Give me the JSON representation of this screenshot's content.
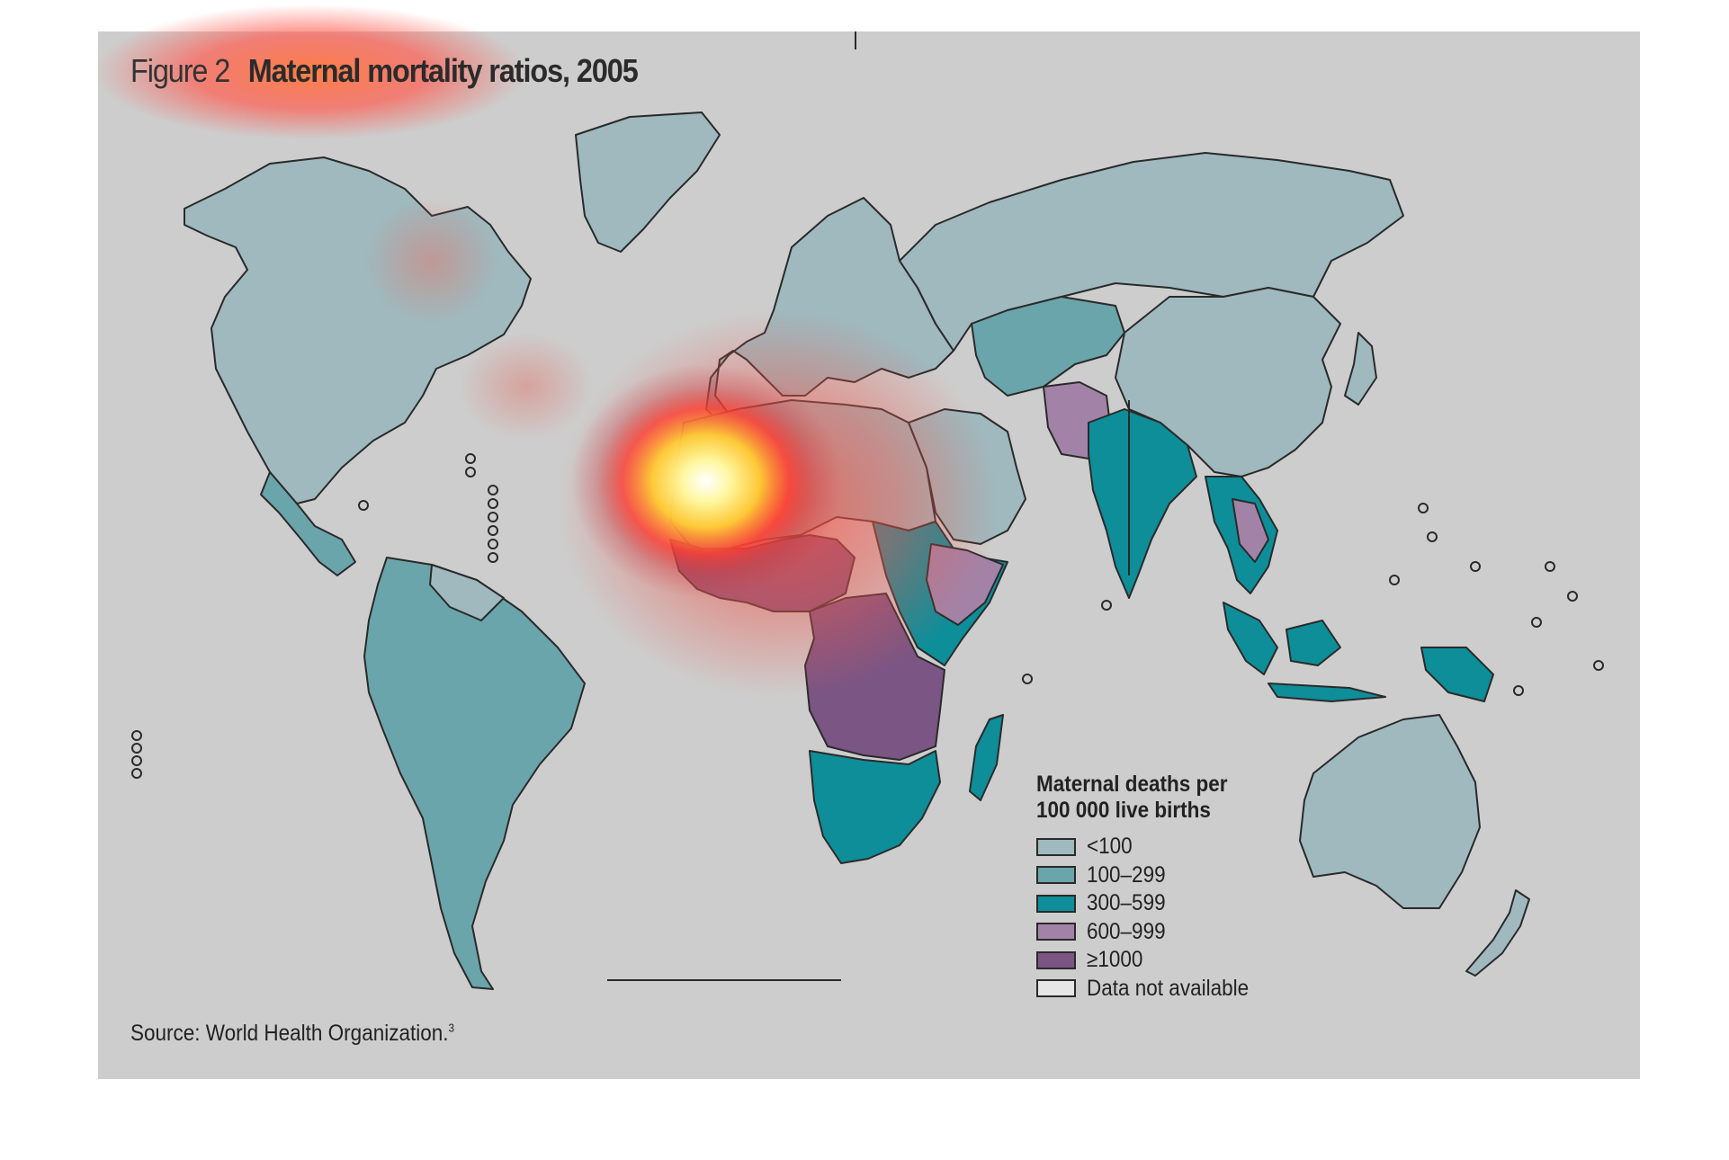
{
  "figure": {
    "label": "Figure 2",
    "title": "Maternal mortality ratios, 2005",
    "source": "Source: World Health Organization.",
    "source_note": "3"
  },
  "legend": {
    "title_line1": "Maternal deaths per",
    "title_line2": "100 000 live births",
    "items": [
      {
        "label": "<100",
        "color": "#9fb9be"
      },
      {
        "label": "100–299",
        "color": "#6aa5ab"
      },
      {
        "label": "300–599",
        "color": "#0d8e99"
      },
      {
        "label": "600–999",
        "color": "#a283a7"
      },
      {
        "label": "≥1000",
        "color": "#7b5583"
      },
      {
        "label": "Data not available",
        "color": "#e6e6e6"
      }
    ]
  },
  "map": {
    "background_color": "#cdcdcd",
    "border_color": "#2a2a2a",
    "highlight_colors": [
      "#fff7a0",
      "#ff2a2a"
    ]
  }
}
